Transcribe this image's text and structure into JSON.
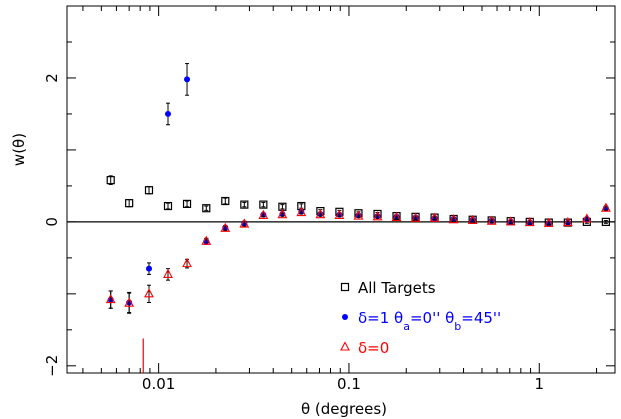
{
  "chart_data": {
    "type": "scatter",
    "xscale": "log",
    "xlim": [
      0.0033,
      2.5
    ],
    "ylim": [
      -2.1,
      3.0
    ],
    "xlabel": "θ (degrees)",
    "ylabel": "w(θ)",
    "xticks": [
      0.01,
      0.1,
      1
    ],
    "xtick_labels": [
      "0.01",
      "0.1",
      "1"
    ],
    "yticks": [
      -2,
      0,
      2
    ],
    "ytick_labels": [
      "−2",
      "0",
      "2"
    ],
    "reference_line_y": 0,
    "legend_position": "lower-right",
    "series": [
      {
        "name": "All Targets",
        "marker": "open-square",
        "color": "#000000",
        "points": [
          {
            "x": 0.0056,
            "y": 0.58,
            "err": 0.06
          },
          {
            "x": 0.007,
            "y": 0.26,
            "err": 0.05
          },
          {
            "x": 0.0089,
            "y": 0.44,
            "err": 0.05
          },
          {
            "x": 0.0112,
            "y": 0.22,
            "err": 0.04
          },
          {
            "x": 0.0141,
            "y": 0.25,
            "err": 0.04
          },
          {
            "x": 0.0178,
            "y": 0.19,
            "err": 0.03
          },
          {
            "x": 0.0224,
            "y": 0.29,
            "err": 0.04
          },
          {
            "x": 0.0282,
            "y": 0.24,
            "err": 0.03
          },
          {
            "x": 0.0355,
            "y": 0.24,
            "err": 0.03
          },
          {
            "x": 0.0447,
            "y": 0.21,
            "err": 0.03
          },
          {
            "x": 0.0562,
            "y": 0.22,
            "err": 0.03
          },
          {
            "x": 0.0708,
            "y": 0.15,
            "err": 0.02
          },
          {
            "x": 0.0891,
            "y": 0.14,
            "err": 0.02
          },
          {
            "x": 0.1122,
            "y": 0.12,
            "err": 0.02
          },
          {
            "x": 0.1413,
            "y": 0.11,
            "err": 0.02
          },
          {
            "x": 0.1778,
            "y": 0.08,
            "err": 0.02
          },
          {
            "x": 0.2239,
            "y": 0.07,
            "err": 0.02
          },
          {
            "x": 0.2818,
            "y": 0.06,
            "err": 0.02
          },
          {
            "x": 0.3548,
            "y": 0.04,
            "err": 0.02
          },
          {
            "x": 0.4467,
            "y": 0.03,
            "err": 0.02
          },
          {
            "x": 0.5623,
            "y": 0.02,
            "err": 0.02
          },
          {
            "x": 0.7079,
            "y": 0.01,
            "err": 0.02
          },
          {
            "x": 0.8913,
            "y": 0.0,
            "err": 0.02
          },
          {
            "x": 1.122,
            "y": -0.01,
            "err": 0.02
          },
          {
            "x": 1.413,
            "y": -0.01,
            "err": 0.02
          },
          {
            "x": 1.778,
            "y": 0.0,
            "err": 0.02
          },
          {
            "x": 2.239,
            "y": 0.0,
            "err": 0.02
          }
        ]
      },
      {
        "name": "δ=1  θa=0''  θb=45''",
        "marker": "filled-circle",
        "color": "#0000ff",
        "points": [
          {
            "x": 0.0056,
            "y": -1.08,
            "err": 0.12
          },
          {
            "x": 0.007,
            "y": -1.12,
            "err": 0.14
          },
          {
            "x": 0.0089,
            "y": -0.65,
            "err": 0.08
          },
          {
            "x": 0.0112,
            "y": 1.5,
            "err": 0.15
          },
          {
            "x": 0.0141,
            "y": 1.98,
            "err": 0.22
          },
          {
            "x": 0.0178,
            "y": -0.27,
            "err": 0.04
          },
          {
            "x": 0.0224,
            "y": -0.08,
            "err": 0.03
          },
          {
            "x": 0.0282,
            "y": -0.02,
            "err": 0.03
          },
          {
            "x": 0.0355,
            "y": 0.1,
            "err": 0.02
          },
          {
            "x": 0.0447,
            "y": 0.11,
            "err": 0.02
          },
          {
            "x": 0.0562,
            "y": 0.14,
            "err": 0.02
          },
          {
            "x": 0.0708,
            "y": 0.11,
            "err": 0.02
          },
          {
            "x": 0.0891,
            "y": 0.1,
            "err": 0.02
          },
          {
            "x": 0.1122,
            "y": 0.09,
            "err": 0.02
          },
          {
            "x": 0.1413,
            "y": 0.08,
            "err": 0.02
          },
          {
            "x": 0.1778,
            "y": 0.07,
            "err": 0.02
          },
          {
            "x": 0.2239,
            "y": 0.06,
            "err": 0.02
          },
          {
            "x": 0.2818,
            "y": 0.05,
            "err": 0.02
          },
          {
            "x": 0.3548,
            "y": 0.04,
            "err": 0.02
          },
          {
            "x": 0.4467,
            "y": 0.03,
            "err": 0.02
          },
          {
            "x": 0.5623,
            "y": 0.02,
            "err": 0.02
          },
          {
            "x": 0.7079,
            "y": 0.0,
            "err": 0.02
          },
          {
            "x": 0.8913,
            "y": -0.01,
            "err": 0.02
          },
          {
            "x": 1.122,
            "y": -0.02,
            "err": 0.02
          },
          {
            "x": 1.413,
            "y": -0.01,
            "err": 0.02
          },
          {
            "x": 1.778,
            "y": 0.04,
            "err": 0.02
          },
          {
            "x": 2.239,
            "y": 0.19,
            "err": 0.03
          }
        ]
      },
      {
        "name": "δ=0",
        "marker": "open-triangle",
        "color": "#ff0000",
        "points": [
          {
            "x": 0.0056,
            "y": -1.08,
            "err": 0.12
          },
          {
            "x": 0.007,
            "y": -1.13,
            "err": 0.14
          },
          {
            "x": 0.0089,
            "y": -1.0,
            "err": 0.12
          },
          {
            "x": 0.0112,
            "y": -0.73,
            "err": 0.08
          },
          {
            "x": 0.0141,
            "y": -0.58,
            "err": 0.06
          },
          {
            "x": 0.0178,
            "y": -0.27,
            "err": 0.04
          },
          {
            "x": 0.0224,
            "y": -0.09,
            "err": 0.03
          },
          {
            "x": 0.0282,
            "y": -0.03,
            "err": 0.03
          },
          {
            "x": 0.0355,
            "y": 0.09,
            "err": 0.02
          },
          {
            "x": 0.0447,
            "y": 0.1,
            "err": 0.02
          },
          {
            "x": 0.0562,
            "y": 0.13,
            "err": 0.02
          },
          {
            "x": 0.0708,
            "y": 0.1,
            "err": 0.02
          },
          {
            "x": 0.0891,
            "y": 0.09,
            "err": 0.02
          },
          {
            "x": 0.1122,
            "y": 0.08,
            "err": 0.02
          },
          {
            "x": 0.1413,
            "y": 0.07,
            "err": 0.02
          },
          {
            "x": 0.1778,
            "y": 0.06,
            "err": 0.02
          },
          {
            "x": 0.2239,
            "y": 0.05,
            "err": 0.02
          },
          {
            "x": 0.2818,
            "y": 0.05,
            "err": 0.02
          },
          {
            "x": 0.3548,
            "y": 0.03,
            "err": 0.02
          },
          {
            "x": 0.4467,
            "y": 0.02,
            "err": 0.02
          },
          {
            "x": 0.5623,
            "y": 0.01,
            "err": 0.02
          },
          {
            "x": 0.7079,
            "y": 0.0,
            "err": 0.02
          },
          {
            "x": 0.8913,
            "y": -0.01,
            "err": 0.02
          },
          {
            "x": 1.122,
            "y": -0.02,
            "err": 0.02
          },
          {
            "x": 1.413,
            "y": -0.01,
            "err": 0.02
          },
          {
            "x": 1.778,
            "y": 0.04,
            "err": 0.02
          },
          {
            "x": 2.239,
            "y": 0.19,
            "err": 0.03
          }
        ]
      }
    ],
    "marker_line": {
      "x": 0.0083,
      "y_from": -2.1,
      "y_to": -1.62,
      "color": "#ff0000"
    },
    "legend": [
      {
        "marker": "open-square",
        "color": "#000000",
        "label": "All Targets"
      },
      {
        "marker": "filled-circle",
        "color": "#0000ff",
        "label_parts": [
          "δ=1  θ",
          "a",
          "=0''  θ",
          "b",
          "=45''"
        ]
      },
      {
        "marker": "open-triangle",
        "color": "#ff0000",
        "label": "δ=0"
      }
    ]
  }
}
